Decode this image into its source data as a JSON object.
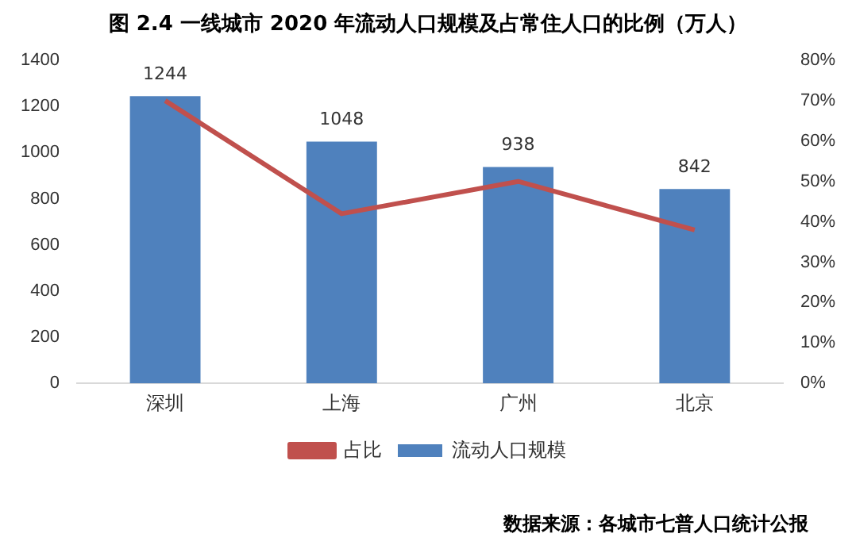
{
  "chart_data": {
    "type": "bar",
    "title": "图 2.4   一线城市 2020 年流动人口规模及占常住人口的比例（万人）",
    "categories": [
      "深圳",
      "上海",
      "广州",
      "北京"
    ],
    "series": [
      {
        "name": "流动人口规模",
        "color": "#4f81bd",
        "values": [
          1244,
          1048,
          938,
          842
        ],
        "value_labels": [
          "1244",
          "1048",
          "938",
          "842"
        ]
      },
      {
        "name": "占比",
        "type": "line",
        "axis": "y2",
        "color": "#c0504d",
        "values": [
          70,
          42,
          50,
          38
        ]
      }
    ],
    "ylim": [
      0,
      1400
    ],
    "yticks": [
      0,
      200,
      400,
      600,
      800,
      1000,
      1200,
      1400
    ],
    "y2lim": [
      0,
      80
    ],
    "y2ticks": [
      {
        "value": 0,
        "label": "0%"
      },
      {
        "value": 10,
        "label": "10%"
      },
      {
        "value": 20,
        "label": "20%"
      },
      {
        "value": 30,
        "label": "30%"
      },
      {
        "value": 40,
        "label": "40%"
      },
      {
        "value": 50,
        "label": "50%"
      },
      {
        "value": 60,
        "label": "60%"
      },
      {
        "value": 70,
        "label": "70%"
      },
      {
        "value": 80,
        "label": "80%"
      }
    ],
    "grid": false,
    "legend": "bottom",
    "marker": "none",
    "annotations": [
      "数据来源：各城市七普人口统计公报"
    ]
  }
}
